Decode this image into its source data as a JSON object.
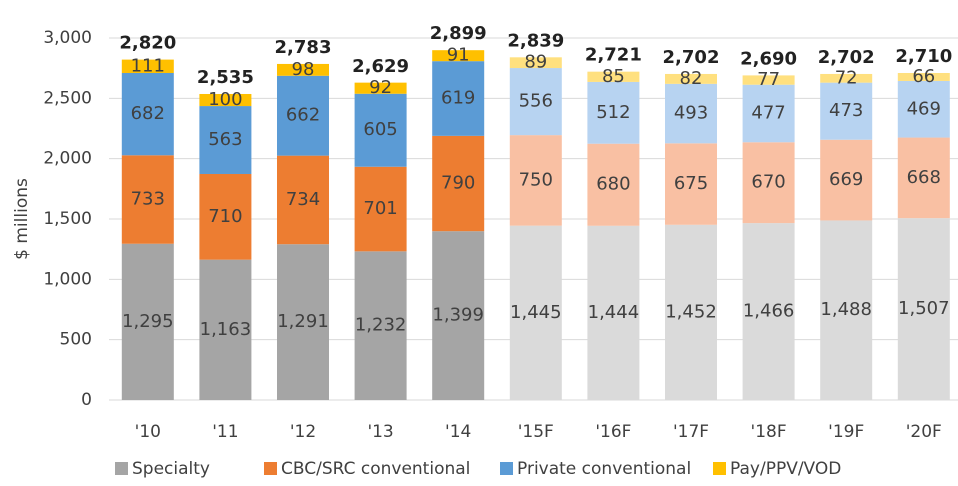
{
  "chart_data": {
    "type": "stacked_bar",
    "ylabel": "$ millions",
    "categories": [
      "'10",
      "'11",
      "'12",
      "'13",
      "'14",
      "'15F",
      "'16F",
      "'17F",
      "'18F",
      "'19F",
      "'20F"
    ],
    "series": [
      {
        "name": "Specialty",
        "color": "#a5a5a5",
        "colors": [
          "#a5a5a5",
          "#a5a5a5",
          "#a5a5a5",
          "#a5a5a5",
          "#a5a5a5",
          "#dadada",
          "#dadada",
          "#dadada",
          "#dadada",
          "#dadada",
          "#dadada"
        ],
        "values": [
          1295,
          1163,
          1291,
          1232,
          1399,
          1445,
          1444,
          1452,
          1466,
          1488,
          1507
        ],
        "value_labels": [
          "1,295",
          "1,163",
          "1,291",
          "1,232",
          "1,399",
          "1,445",
          "1,444",
          "1,452",
          "1,466",
          "1,488",
          "1,507"
        ]
      },
      {
        "name": "CBC/SRC conventional",
        "color": "#ed7d31",
        "colors": [
          "#ed7d31",
          "#ed7d31",
          "#ed7d31",
          "#ed7d31",
          "#ed7d31",
          "#f9c0a3",
          "#f9c0a3",
          "#f9c0a3",
          "#f9c0a3",
          "#f9c0a3",
          "#f9c0a3"
        ],
        "values": [
          733,
          710,
          734,
          701,
          790,
          750,
          680,
          675,
          670,
          669,
          668
        ]
      },
      {
        "name": "Private conventional",
        "color": "#5b9bd5",
        "colors": [
          "#5b9bd5",
          "#5b9bd5",
          "#5b9bd5",
          "#5b9bd5",
          "#5b9bd5",
          "#b7d3f1",
          "#b7d3f1",
          "#b7d3f1",
          "#b7d3f1",
          "#b7d3f1",
          "#b7d3f1"
        ],
        "values": [
          682,
          563,
          662,
          605,
          619,
          556,
          512,
          493,
          477,
          473,
          469
        ]
      },
      {
        "name": "Pay/PPV/VOD",
        "color": "#ffc000",
        "colors": [
          "#ffc000",
          "#ffc000",
          "#ffc000",
          "#ffc000",
          "#ffc000",
          "#ffe07f",
          "#ffe07f",
          "#ffe07f",
          "#ffe07f",
          "#ffe07f",
          "#ffe07f"
        ],
        "values": [
          111,
          100,
          98,
          92,
          91,
          89,
          85,
          82,
          77,
          72,
          66
        ]
      }
    ],
    "totals": [
      2820,
      2535,
      2783,
      2629,
      2899,
      2839,
      2721,
      2702,
      2690,
      2702,
      2710
    ],
    "total_labels": [
      "2,820",
      "2,535",
      "2,783",
      "2,629",
      "2,899",
      "2,839",
      "2,721",
      "2,702",
      "2,690",
      "2,702",
      "2,710"
    ],
    "ylim": [
      0,
      3000
    ],
    "yticks": [
      0,
      500,
      {
        "value": 1000,
        "label": "1,000"
      },
      {
        "value": 1500,
        "label": "1,500"
      },
      {
        "value": 2000,
        "label": "2,000"
      },
      {
        "value": 2500,
        "label": "2,500"
      },
      {
        "value": 3000,
        "label": "3,000"
      }
    ],
    "grid": true,
    "legend": "bottom"
  }
}
